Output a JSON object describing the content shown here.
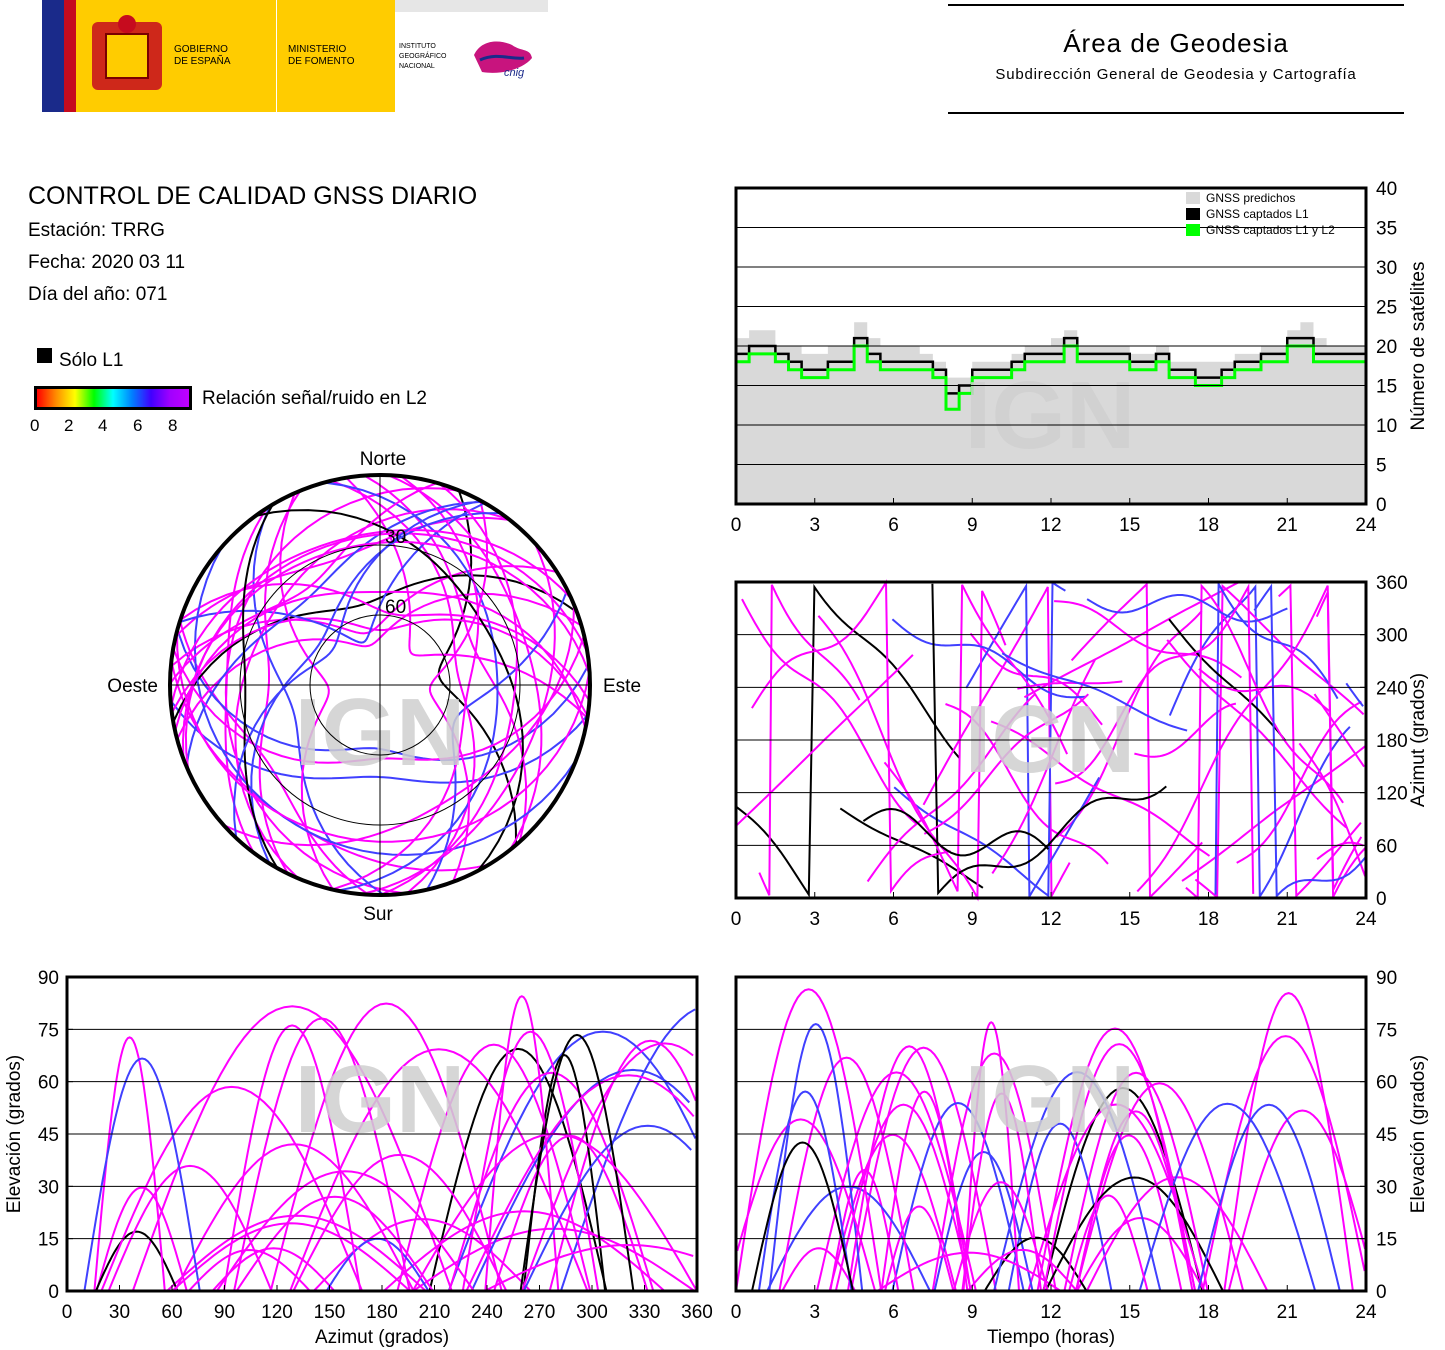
{
  "header": {
    "gov_line1": "GOBIERNO",
    "gov_line2": "DE ESPAÑA",
    "min_line1": "MINISTERIO",
    "min_line2": "DE FOMENTO",
    "ign_line1": "INSTITUTO",
    "ign_line2": "GEOGRÁFICO",
    "ign_line3": "NACIONAL",
    "cnig": "cnig",
    "area_title": "Área de Geodesia",
    "area_subtitle": "Subdirección General de Geodesia y Cartografía"
  },
  "info": {
    "title": "CONTROL DE CALIDAD GNSS DIARIO",
    "station": "Estación: TRRG",
    "date": "Fecha: 2020 03 11",
    "doy": "Día del año: 071"
  },
  "legend": {
    "solo_l1": "Sólo L1",
    "snr_label": "Relación señal/ruido en L2",
    "snr_ticks": [
      "0",
      "2",
      "4",
      "6",
      "8"
    ],
    "colors": {
      "l1_only": "#000000",
      "high_snr": "#ff00ff",
      "mid_snr": "#4040ff",
      "low_snr": "#00c0ff"
    }
  },
  "watermark": "IGN",
  "chart_data": [
    {
      "type": "line",
      "id": "satellites",
      "ylabel": "Número de satélites",
      "xlim": [
        0,
        24
      ],
      "ylim": [
        0,
        40
      ],
      "xticks": [
        "0",
        "3",
        "6",
        "9",
        "12",
        "15",
        "18",
        "21",
        "24"
      ],
      "yticks": [
        "0",
        "5",
        "10",
        "15",
        "20",
        "25",
        "30",
        "35",
        "40"
      ],
      "grid": true,
      "legend_position": "top-right",
      "x": [
        0,
        0.5,
        1,
        1.5,
        2,
        2.5,
        3,
        3.5,
        4,
        4.5,
        5,
        5.5,
        6,
        6.5,
        7,
        7.5,
        8,
        8.5,
        9,
        9.5,
        10,
        10.5,
        11,
        11.5,
        12,
        12.5,
        13,
        13.5,
        14,
        14.5,
        15,
        15.5,
        16,
        16.5,
        17,
        17.5,
        18,
        18.5,
        19,
        19.5,
        20,
        20.5,
        21,
        21.5,
        22,
        22.5,
        23,
        23.5,
        24
      ],
      "series": [
        {
          "name": "GNSS predichos",
          "color": "#d9d9d9",
          "values": [
            21,
            22,
            22,
            20,
            20,
            19,
            19,
            20,
            20,
            23,
            21,
            20,
            20,
            20,
            19,
            18,
            16,
            16,
            18,
            18,
            18,
            19,
            20,
            20,
            21,
            22,
            20,
            20,
            20,
            20,
            19,
            19,
            20,
            18,
            18,
            18,
            18,
            18,
            19,
            19,
            20,
            20,
            22,
            23,
            21,
            20,
            20,
            20,
            20
          ]
        },
        {
          "name": "GNSS captados L1",
          "color": "#000000",
          "values": [
            19,
            20,
            20,
            19,
            18,
            17,
            17,
            18,
            18,
            21,
            19,
            18,
            18,
            18,
            18,
            17,
            14,
            15,
            17,
            17,
            17,
            18,
            19,
            19,
            19,
            21,
            19,
            19,
            19,
            19,
            18,
            18,
            19,
            17,
            17,
            16,
            16,
            17,
            18,
            18,
            19,
            19,
            21,
            21,
            19,
            19,
            19,
            19,
            18
          ]
        },
        {
          "name": "GNSS captados L1 y L2",
          "color": "#00ff00",
          "values": [
            18,
            19,
            19,
            18,
            17,
            16,
            16,
            17,
            17,
            20,
            18,
            17,
            17,
            17,
            17,
            16,
            12,
            14,
            16,
            16,
            16,
            17,
            18,
            18,
            18,
            20,
            18,
            18,
            18,
            18,
            17,
            17,
            18,
            16,
            16,
            15,
            15,
            16,
            17,
            17,
            18,
            18,
            20,
            20,
            18,
            18,
            18,
            18,
            17
          ]
        }
      ]
    },
    {
      "type": "scatter",
      "id": "azimut-time",
      "ylabel": "Azimut (grados)",
      "xlim": [
        0,
        24
      ],
      "ylim": [
        0,
        360
      ],
      "xticks": [
        "0",
        "3",
        "6",
        "9",
        "12",
        "15",
        "18",
        "21",
        "24"
      ],
      "yticks": [
        "0",
        "60",
        "120",
        "180",
        "240",
        "300",
        "360"
      ],
      "grid": true
    },
    {
      "type": "scatter",
      "id": "skyplot",
      "labels": {
        "north": "Norte",
        "south": "Sur",
        "east": "Este",
        "west": "Oeste"
      },
      "rings": [
        "30",
        "60"
      ]
    },
    {
      "type": "scatter",
      "id": "elevation-azimut",
      "xlabel": "Azimut (grados)",
      "ylabel": "Elevación (grados)",
      "xlim": [
        0,
        360
      ],
      "ylim": [
        0,
        90
      ],
      "xticks": [
        "0",
        "30",
        "60",
        "90",
        "120",
        "150",
        "180",
        "210",
        "240",
        "270",
        "300",
        "330",
        "360"
      ],
      "yticks": [
        "0",
        "15",
        "30",
        "45",
        "60",
        "75",
        "90"
      ],
      "grid": true
    },
    {
      "type": "scatter",
      "id": "elevation-time",
      "xlabel": "Tiempo (horas)",
      "ylabel": "Elevación (grados)",
      "xlim": [
        0,
        24
      ],
      "ylim": [
        0,
        90
      ],
      "xticks": [
        "0",
        "3",
        "6",
        "9",
        "12",
        "15",
        "18",
        "21",
        "24"
      ],
      "yticks": [
        "0",
        "15",
        "30",
        "45",
        "60",
        "75",
        "90"
      ],
      "grid": true
    }
  ]
}
